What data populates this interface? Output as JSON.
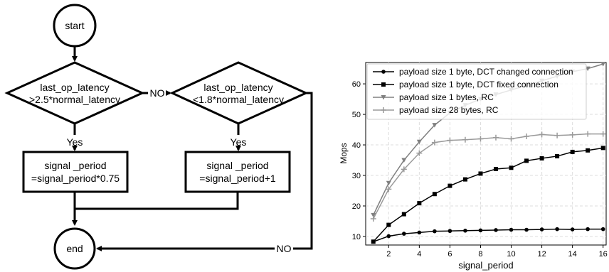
{
  "flowchart": {
    "start_label": "start",
    "end_label": "end",
    "decision1": {
      "line1": "last_op_latency",
      "line2": ">2.5*normal_latency"
    },
    "decision2": {
      "line1": "last_op_latency",
      "line2": "<1.8*normal_latency"
    },
    "process1": {
      "line1": "signal _period",
      "line2": "=signal_period*0.75"
    },
    "process2": {
      "line1": "signal _period",
      "line2": "=signal_period+1"
    },
    "yes_label_1": "Yes",
    "yes_label_2": "Yes",
    "no_label_1": "NO",
    "no_label_2": "NO"
  },
  "chart_data": {
    "type": "line",
    "xlabel": "signal_period",
    "ylabel": "Mops",
    "xlim": [
      0.5,
      16.2
    ],
    "ylim": [
      7.2,
      67
    ],
    "x_ticks": [
      2,
      4,
      6,
      8,
      10,
      12,
      14,
      16
    ],
    "y_ticks": [
      10,
      20,
      30,
      40,
      50,
      60
    ],
    "grid": true,
    "legend_position": "top-left",
    "x": [
      1,
      2,
      3,
      4,
      5,
      6,
      7,
      8,
      9,
      10,
      11,
      12,
      13,
      14,
      15,
      16
    ],
    "series": [
      {
        "name": "payload size 1 byte, DCT changed connection",
        "marker": "circle",
        "color": "#000000",
        "values": [
          8.3,
          10.1,
          10.9,
          11.3,
          11.7,
          11.8,
          11.9,
          12.0,
          12.1,
          12.2,
          12.2,
          12.3,
          12.4,
          12.3,
          12.4,
          12.4
        ]
      },
      {
        "name": "payload size 1 byte, DCT fixed connection",
        "marker": "square",
        "color": "#000000",
        "values": [
          8.3,
          13.8,
          17.3,
          20.9,
          23.9,
          26.6,
          28.7,
          30.6,
          32.1,
          32.5,
          34.8,
          35.6,
          36.3,
          37.7,
          38.2,
          39.0
        ]
      },
      {
        "name": "payload size 1 bytes, RC",
        "marker": "triangle-down",
        "color": "#808080",
        "values": [
          17.0,
          27.5,
          35.0,
          41.0,
          46.5,
          50.5,
          53.0,
          55.0,
          56.5,
          58.0,
          59.5,
          61.0,
          62.5,
          64.0,
          65.0,
          66.5
        ]
      },
      {
        "name": "payload size 28 bytes, RC",
        "marker": "plus",
        "color": "#9a9a9a",
        "values": [
          15.8,
          25.5,
          32.0,
          37.3,
          40.8,
          41.5,
          41.7,
          42.0,
          42.4,
          42.0,
          42.8,
          43.4,
          43.1,
          43.3,
          43.6,
          43.6
        ]
      }
    ]
  }
}
